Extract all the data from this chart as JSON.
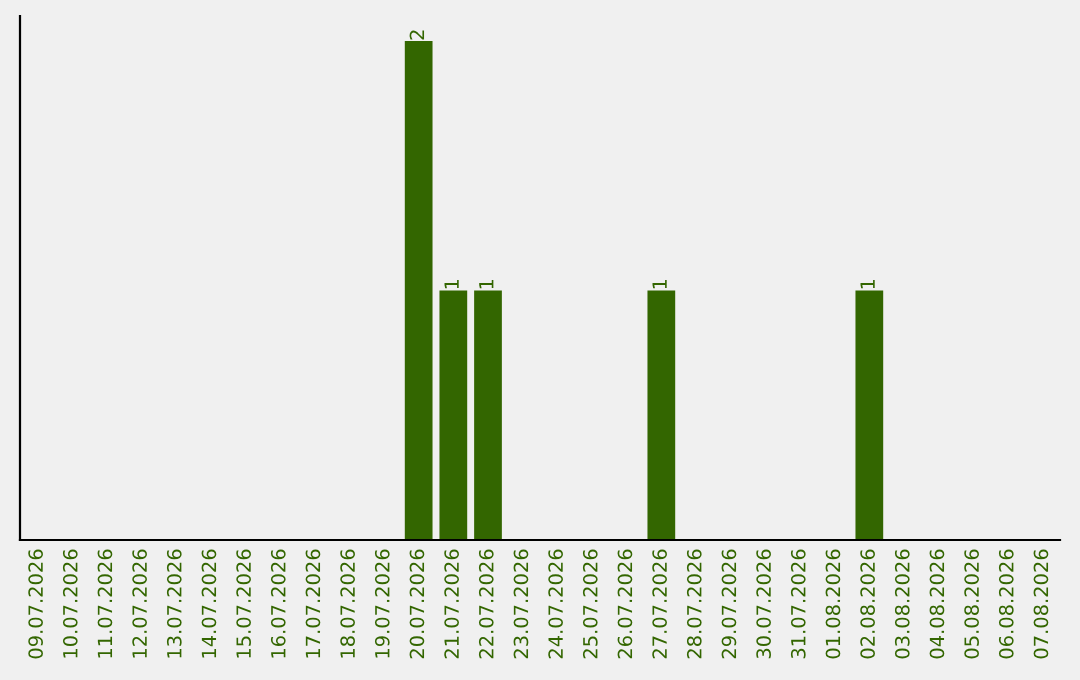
{
  "chart_data": {
    "type": "bar",
    "categories": [
      "09.07.2026",
      "10.07.2026",
      "11.07.2026",
      "12.07.2026",
      "13.07.2026",
      "14.07.2026",
      "15.07.2026",
      "16.07.2026",
      "17.07.2026",
      "18.07.2026",
      "19.07.2026",
      "20.07.2026",
      "21.07.2026",
      "22.07.2026",
      "23.07.2026",
      "24.07.2026",
      "25.07.2026",
      "26.07.2026",
      "27.07.2026",
      "28.07.2026",
      "29.07.2026",
      "30.07.2026",
      "31.07.2026",
      "01.08.2026",
      "02.08.2026",
      "03.08.2026",
      "04.08.2026",
      "05.08.2026",
      "06.08.2026",
      "07.08.2026"
    ],
    "values": [
      0,
      0,
      0,
      0,
      0,
      0,
      0,
      0,
      0,
      0,
      0,
      2,
      1,
      1,
      0,
      0,
      0,
      0,
      1,
      0,
      0,
      0,
      0,
      0,
      1,
      0,
      0,
      0,
      0,
      0
    ],
    "value_labels": [
      null,
      null,
      null,
      null,
      null,
      null,
      null,
      null,
      null,
      null,
      null,
      "2",
      "1",
      "1",
      null,
      null,
      null,
      null,
      "1",
      null,
      null,
      null,
      null,
      null,
      "1",
      null,
      null,
      null,
      null,
      null
    ],
    "color": "#336600",
    "grid": false,
    "legend": false
  }
}
